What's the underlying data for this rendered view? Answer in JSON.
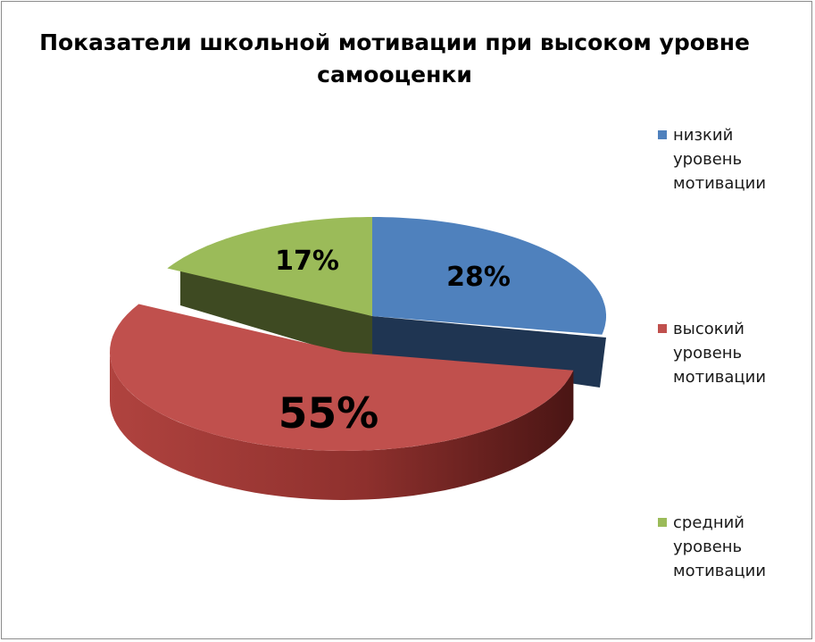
{
  "chart_data": {
    "type": "pie",
    "title": "Показатели школьной мотивации при высоком уровне самооценки",
    "title_lines": [
      "Показатели школьной мотивации при высоком уровне",
      "самооценки"
    ],
    "legend_position": "right",
    "slices": [
      {
        "name": "низкий уровень мотивации",
        "legend_lines": [
          "низкий уровень",
          "мотивации"
        ],
        "value": 28,
        "label": "28%",
        "color": "#4f81bd",
        "side_color": "#1f3552"
      },
      {
        "name": "высокий уровень мотивации",
        "legend_lines": [
          "высокий",
          "уровень",
          "мотивации"
        ],
        "value": 55,
        "label": "55%",
        "color": "#c0504d",
        "side_color": "#7a2624"
      },
      {
        "name": "средний уровень мотивации",
        "legend_lines": [
          "средний",
          "уровень",
          "мотивации"
        ],
        "value": 17,
        "label": "17%",
        "color": "#9bbb59",
        "side_color": "#3e4a22"
      }
    ]
  }
}
